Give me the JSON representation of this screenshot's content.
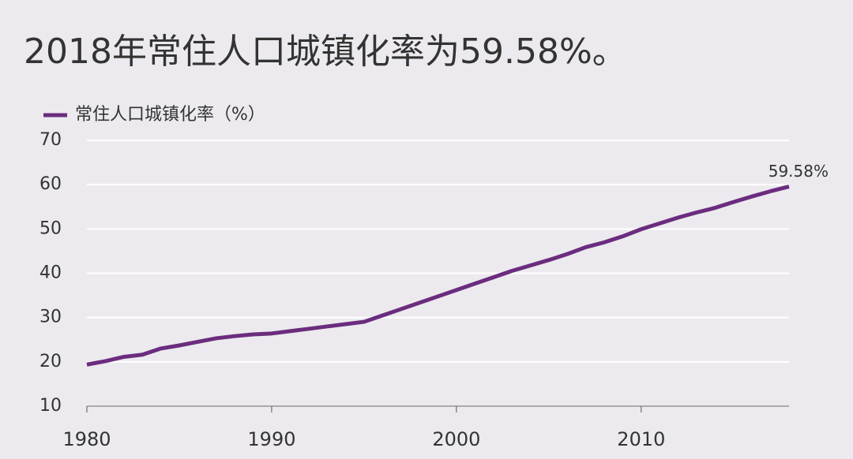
{
  "chart_data": {
    "type": "line",
    "title": "2018年常住人口城镇化率为59.58%。",
    "x": [
      1980,
      1981,
      1982,
      1983,
      1984,
      1985,
      1986,
      1987,
      1988,
      1989,
      1990,
      1991,
      1992,
      1993,
      1994,
      1995,
      1996,
      1997,
      1998,
      1999,
      2000,
      2001,
      2002,
      2003,
      2004,
      2005,
      2006,
      2007,
      2008,
      2009,
      2010,
      2011,
      2012,
      2013,
      2014,
      2015,
      2016,
      2017,
      2018
    ],
    "series": [
      {
        "name": "常住人口城镇化率（%）",
        "color": "#6b2c7e",
        "values": [
          19.39,
          20.16,
          21.13,
          21.62,
          23.01,
          23.71,
          24.52,
          25.32,
          25.81,
          26.21,
          26.41,
          26.94,
          27.46,
          27.99,
          28.51,
          29.04,
          30.48,
          31.91,
          33.35,
          34.78,
          36.22,
          37.66,
          39.09,
          40.53,
          41.76,
          42.99,
          44.34,
          45.89,
          46.99,
          48.34,
          49.95,
          51.27,
          52.57,
          53.73,
          54.77,
          56.1,
          57.35,
          58.52,
          59.58
        ]
      }
    ],
    "annotations": [
      {
        "text": "59.58%",
        "x": 2018,
        "y": 59.58
      }
    ],
    "xlim": [
      1980,
      2018
    ],
    "xticks": [
      1980,
      1990,
      2000,
      2010
    ],
    "ylim": [
      10,
      70
    ],
    "yticks": [
      10,
      20,
      30,
      40,
      50,
      60,
      70
    ],
    "grid": true
  }
}
